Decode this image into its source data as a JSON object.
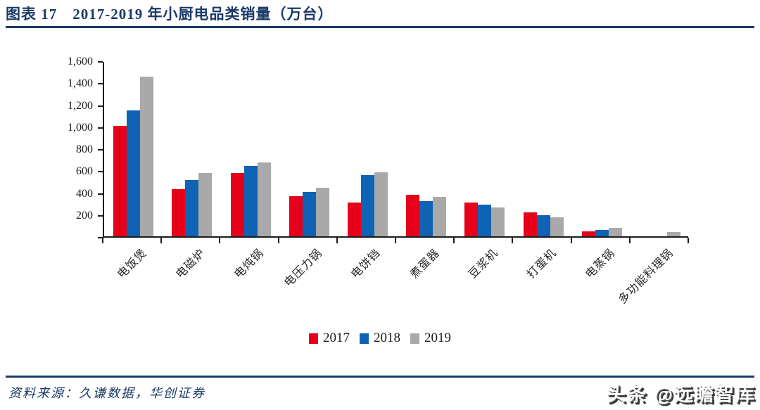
{
  "header": {
    "figure_label": "图表 17",
    "title_text": "2017-2019 年小厨电品类销量（万台）"
  },
  "footer": {
    "source": "资料来源：久谦数据，华创证券",
    "watermark": "头条 @远瞻智库"
  },
  "colors": {
    "accent_navy": "#1b3a68",
    "axis_black": "#1c1c1c",
    "series_2017_red": "#e60019",
    "series_2018_blue": "#0f63b5",
    "series_2019_gray": "#a9a9a9"
  },
  "chart_data": {
    "type": "bar",
    "title": "2017-2019 年小厨电品类销量（万台）",
    "unit": "万台",
    "categories": [
      "电饭煲",
      "电磁炉",
      "电炖锅",
      "电压力锅",
      "电饼铛",
      "煮蛋器",
      "豆浆机",
      "打蛋机",
      "电蒸锅",
      "多功能料理锅"
    ],
    "series": [
      {
        "name": "2017",
        "color": "#e60019",
        "values": [
          1005,
          430,
          575,
          365,
          305,
          375,
          305,
          215,
          45,
          0
        ]
      },
      {
        "name": "2018",
        "color": "#0f63b5",
        "values": [
          1145,
          510,
          640,
          405,
          560,
          320,
          290,
          195,
          55,
          0
        ]
      },
      {
        "name": "2019",
        "color": "#a9a9a9",
        "values": [
          1450,
          575,
          670,
          440,
          585,
          360,
          265,
          175,
          80,
          40
        ]
      }
    ],
    "ylim": [
      0,
      1600
    ],
    "y_ticks": [
      0,
      200,
      400,
      600,
      800,
      1000,
      1200,
      1400,
      1600
    ],
    "y_tick_labels": [
      "",
      "200",
      "400",
      "600",
      "800",
      "1,000",
      "1,200",
      "1,400",
      "1,600"
    ],
    "xlabel": "",
    "ylabel": "",
    "grid": false,
    "legend_position": "bottom"
  }
}
